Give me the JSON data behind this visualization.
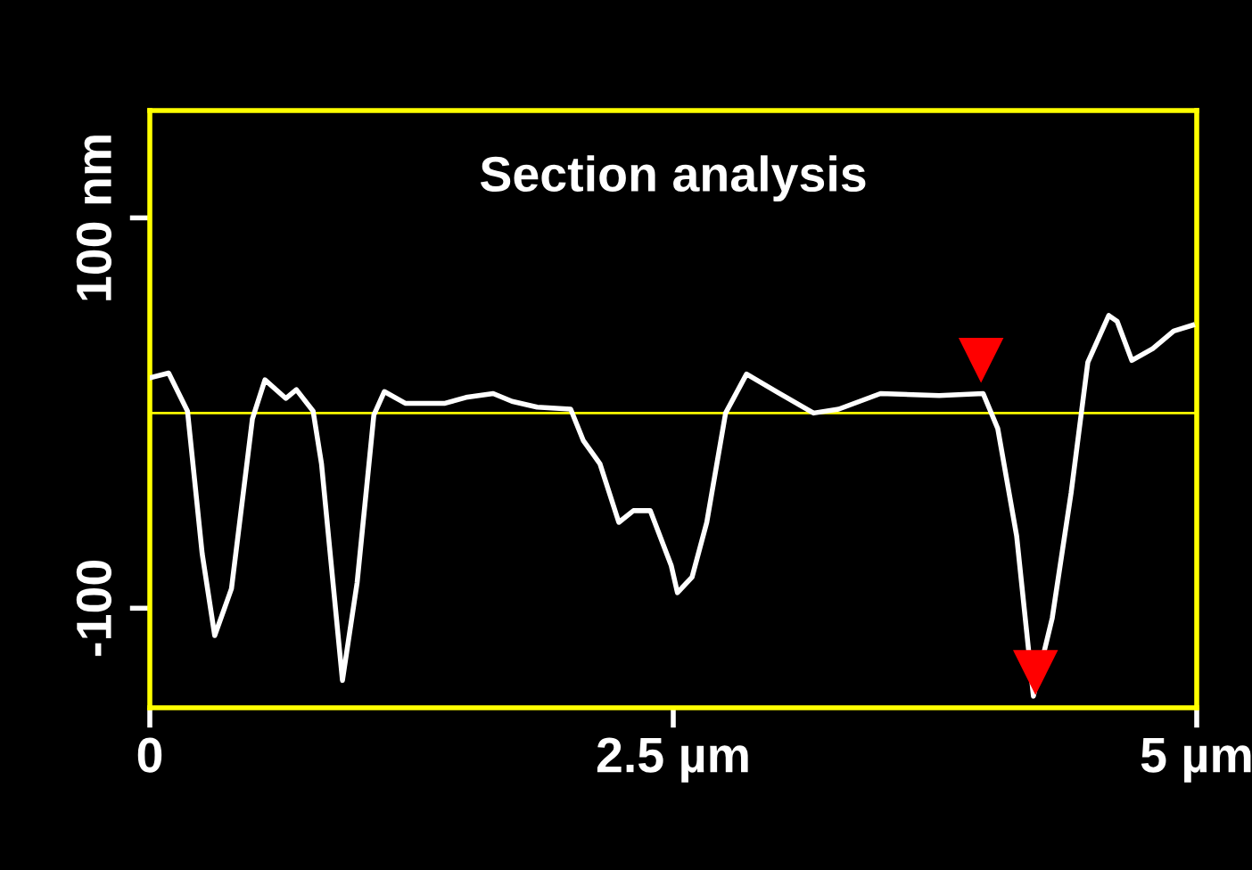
{
  "chart_data": {
    "type": "line",
    "title": "Section analysis",
    "x": [
      0,
      0.09,
      0.18,
      0.25,
      0.31,
      0.39,
      0.49,
      0.55,
      0.65,
      0.7,
      0.78,
      0.82,
      0.92,
      0.99,
      1.07,
      1.12,
      1.22,
      1.41,
      1.51,
      1.64,
      1.73,
      1.85,
      2.01,
      2.07,
      2.15,
      2.24,
      2.31,
      2.39,
      2.49,
      2.52,
      2.59,
      2.66,
      2.75,
      2.85,
      3.0,
      3.17,
      3.29,
      3.49,
      3.77,
      3.98,
      4.05,
      4.14,
      4.22,
      4.31,
      4.4,
      4.48,
      4.58,
      4.62,
      4.69,
      4.79,
      4.89,
      4.98
    ],
    "series": [
      {
        "color": "#ffffff",
        "values": [
          18,
          20.5,
          1,
          -72,
          -114,
          -90,
          -3,
          17,
          7.5,
          12,
          1,
          -26,
          -137,
          -87,
          -1,
          11,
          5,
          5,
          8,
          10,
          6,
          3,
          2,
          -14,
          -26,
          -56,
          -50,
          -50,
          -78,
          -92,
          -84,
          -56,
          0,
          20,
          10.5,
          0,
          2,
          10,
          9,
          10,
          -8,
          -63,
          -145,
          -105,
          -41,
          26,
          50,
          47,
          27,
          33,
          42,
          45
        ]
      },
      {
        "type": "scatter",
        "marker": "triangle",
        "color": "#ff0000",
        "x": [
          3.97,
          4.23
        ],
        "values": [
          27,
          -133
        ]
      }
    ],
    "xlim": [
      0,
      5
    ],
    "xticks": [
      0,
      {
        "value": 2.5,
        "label": "2.5 µm"
      },
      {
        "value": 5,
        "label": "5 µm"
      }
    ],
    "ylim": [
      -151,
      155
    ],
    "yticks": [
      {
        "value": -100,
        "label": "-100"
      },
      {
        "value": 100,
        "label": "100 nm"
      }
    ],
    "ref_lines": [
      {
        "axis": "y",
        "value": 0,
        "color": "#ffff00"
      }
    ],
    "grid": false,
    "legend": false
  }
}
